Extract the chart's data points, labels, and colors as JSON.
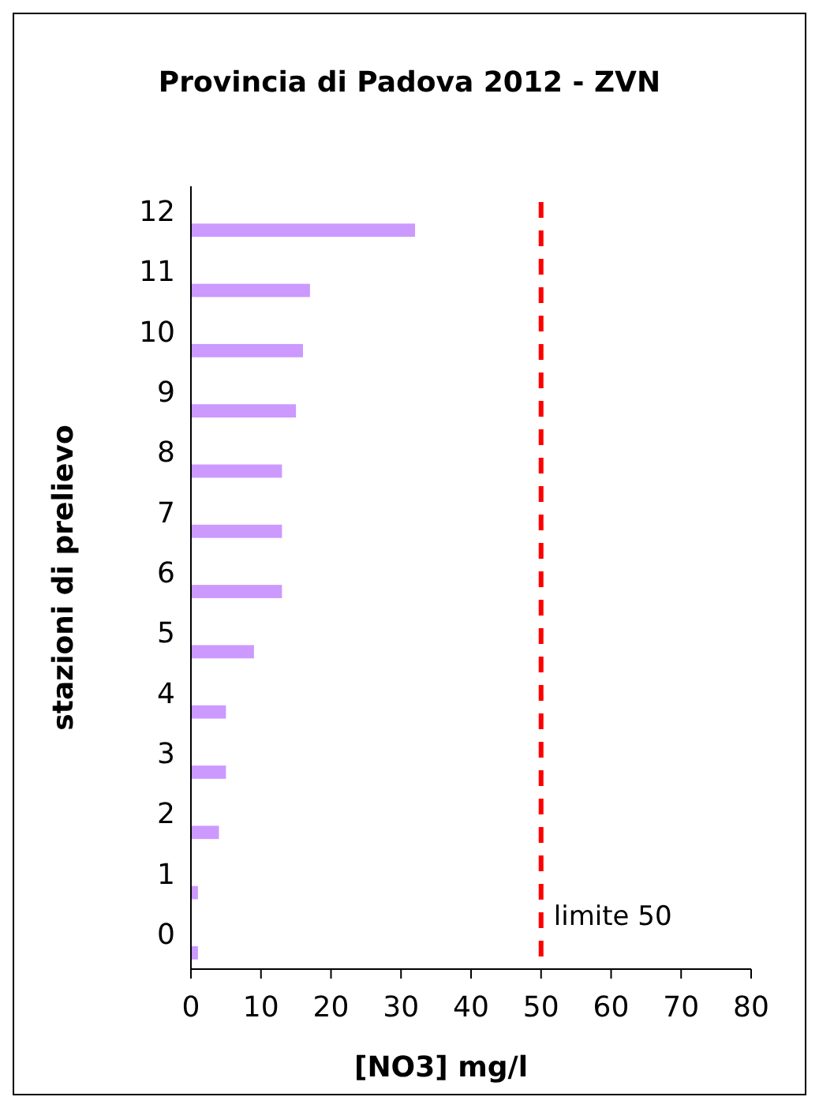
{
  "chart_data": {
    "type": "bar",
    "orientation": "horizontal",
    "title": "Provincia di Padova 2012 - ZVN",
    "xlabel": "[NO3] mg/l",
    "ylabel": "stazioni di prelievo",
    "categories": [
      "12",
      "11",
      "10",
      "9",
      "8",
      "7",
      "6",
      "5",
      "4",
      "3",
      "2",
      "1",
      "0"
    ],
    "values": [
      32,
      17,
      16,
      15,
      13,
      13,
      13,
      9,
      5,
      5,
      4,
      1,
      1
    ],
    "color": "#cc99ff",
    "xlim": [
      0,
      80
    ],
    "xticks": [
      0,
      10,
      20,
      30,
      40,
      50,
      60,
      70,
      80
    ],
    "grid": false,
    "ref_lines": [
      {
        "axis": "x",
        "value": 50,
        "label": "limite 50",
        "color": "#ff0000",
        "line_style": "dashed"
      }
    ]
  }
}
